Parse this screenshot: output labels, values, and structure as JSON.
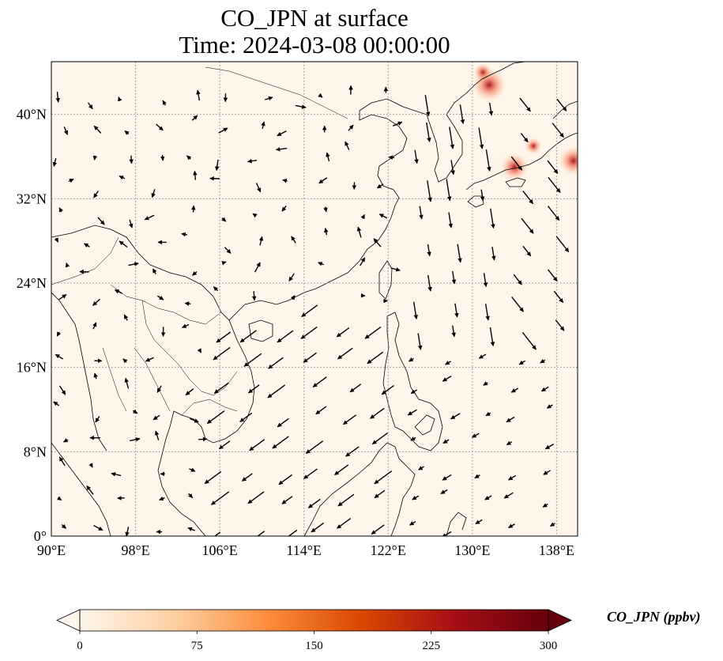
{
  "title": {
    "line1": "CO_JPN at surface",
    "line2": "Time: 2024-03-08 00:00:00"
  },
  "map": {
    "extent": {
      "lon": [
        90,
        140
      ],
      "lat": [
        0,
        45
      ]
    },
    "lon_ticks": [
      {
        "value": 90,
        "label": "90°E"
      },
      {
        "value": 98,
        "label": "98°E"
      },
      {
        "value": 106,
        "label": "106°E"
      },
      {
        "value": 114,
        "label": "114°E"
      },
      {
        "value": 122,
        "label": "122°E"
      },
      {
        "value": 130,
        "label": "130°E"
      },
      {
        "value": 138,
        "label": "138°E"
      }
    ],
    "lat_ticks": [
      {
        "value": 0,
        "label": "0°"
      },
      {
        "value": 8,
        "label": "8°N"
      },
      {
        "value": 16,
        "label": "16°N"
      },
      {
        "value": 24,
        "label": "24°N"
      },
      {
        "value": 32,
        "label": "32°N"
      },
      {
        "value": 40,
        "label": "40°N"
      }
    ],
    "background_color": "#fff5eb",
    "coast_color": "#000000",
    "grid_color": "#888888",
    "hotspots": [
      {
        "lon": 131.6,
        "lat": 42.8,
        "value": 300
      },
      {
        "lon": 134.0,
        "lat": 35.0,
        "value": 220
      },
      {
        "lon": 139.6,
        "lat": 35.6,
        "value": 240
      },
      {
        "lon": 135.8,
        "lat": 37.0,
        "value": 90
      },
      {
        "lon": 131.0,
        "lat": 44.0,
        "value": 110
      }
    ]
  },
  "colorbar": {
    "label": "CO_JPN (ppbv)",
    "min": 0,
    "max": 300,
    "ticks": [
      {
        "value": 0,
        "label": "0"
      },
      {
        "value": 75,
        "label": "75"
      },
      {
        "value": 150,
        "label": "150"
      },
      {
        "value": 225,
        "label": "225"
      },
      {
        "value": 300,
        "label": "300"
      }
    ],
    "stops": [
      "#fff5eb",
      "#fdd0a2",
      "#fd8d3c",
      "#d94801",
      "#a50f15",
      "#67000d"
    ]
  }
}
